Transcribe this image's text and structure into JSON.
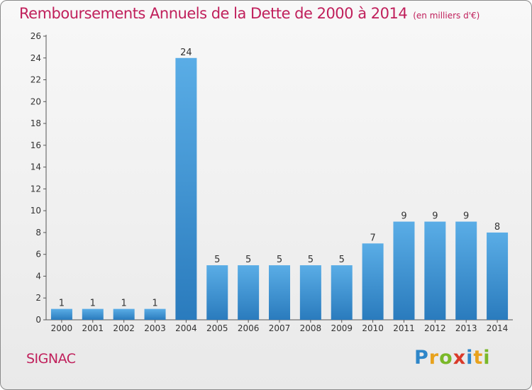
{
  "header": {
    "title": "Remboursements Annuels de la Dette de 2000 à 2014",
    "unit": "(en milliers d'€)"
  },
  "footer": {
    "commune": "SIGNAC",
    "logo_letters": [
      "P",
      "r",
      "o",
      "x",
      "i",
      "t",
      "i"
    ],
    "logo_colors": [
      "#2e86c9",
      "#e8a21d",
      "#7ab829",
      "#d93a2a",
      "#2e86c9",
      "#e8a21d",
      "#7ab829"
    ]
  },
  "chart_data": {
    "type": "bar",
    "title": "Remboursements Annuels de la Dette de 2000 à 2014",
    "xlabel": "",
    "ylabel": "",
    "categories": [
      "2000",
      "2001",
      "2002",
      "2003",
      "2004",
      "2005",
      "2006",
      "2007",
      "2008",
      "2009",
      "2010",
      "2011",
      "2012",
      "2013",
      "2014"
    ],
    "values": [
      1,
      1,
      1,
      1,
      24,
      5,
      5,
      5,
      5,
      5,
      7,
      9,
      9,
      9,
      8
    ],
    "ylim": [
      0,
      26
    ],
    "yticks": [
      0,
      2,
      4,
      6,
      8,
      10,
      12,
      14,
      16,
      18,
      20,
      22,
      24,
      26
    ],
    "bar_color_top": "#5aade6",
    "bar_color_bottom": "#2a7bbd",
    "grid": false,
    "legend": "none"
  }
}
